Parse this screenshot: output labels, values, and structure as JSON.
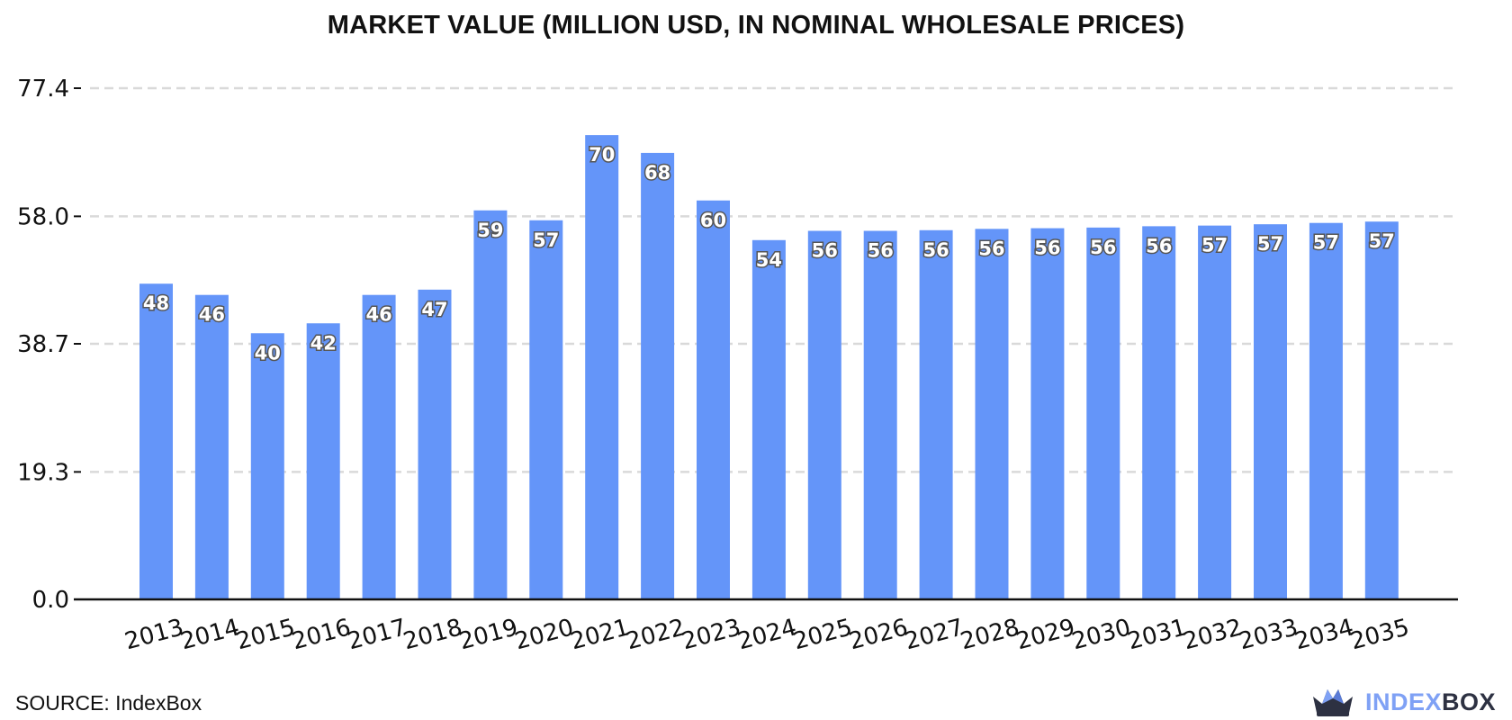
{
  "title": "MARKET VALUE (MILLION USD, IN NOMINAL WHOLESALE PRICES)",
  "source": "SOURCE: IndexBox",
  "brand": {
    "part_a": "INDEX",
    "part_b": "BOX",
    "icon": "indexbox-crown-logo-icon"
  },
  "colors": {
    "bar": "#6495f9",
    "grid": "#d9d9d9",
    "axis": "#111111",
    "brand_light": "#7fa1f5",
    "brand_dark": "#2d3142"
  },
  "chart_data": {
    "type": "bar",
    "title": "MARKET VALUE (MILLION USD, IN NOMINAL WHOLESALE PRICES)",
    "xlabel": "",
    "ylabel": "",
    "categories": [
      "2013",
      "2014",
      "2015",
      "2016",
      "2017",
      "2018",
      "2019",
      "2020",
      "2021",
      "2022",
      "2023",
      "2024",
      "2025",
      "2026",
      "2027",
      "2028",
      "2029",
      "2030",
      "2031",
      "2032",
      "2033",
      "2034",
      "2035"
    ],
    "values": [
      47.8,
      46.1,
      40.3,
      41.8,
      46.1,
      46.9,
      58.9,
      57.4,
      70.3,
      67.6,
      60.4,
      54.4,
      55.8,
      55.8,
      55.9,
      56.1,
      56.2,
      56.3,
      56.5,
      56.6,
      56.8,
      57.0,
      57.2
    ],
    "data_labels": [
      "48",
      "46",
      "40",
      "42",
      "46",
      "47",
      "59",
      "57",
      "70",
      "68",
      "60",
      "54",
      "56",
      "56",
      "56",
      "56",
      "56",
      "56",
      "56",
      "57",
      "57",
      "57",
      "57"
    ],
    "yticks": [
      0.0,
      19.3,
      38.7,
      58.0,
      77.4
    ],
    "ytick_labels": [
      "0.0",
      "19.3",
      "38.7",
      "58.0",
      "77.4"
    ],
    "ylim": [
      0,
      77.4
    ],
    "grid": true,
    "legend": "none"
  }
}
